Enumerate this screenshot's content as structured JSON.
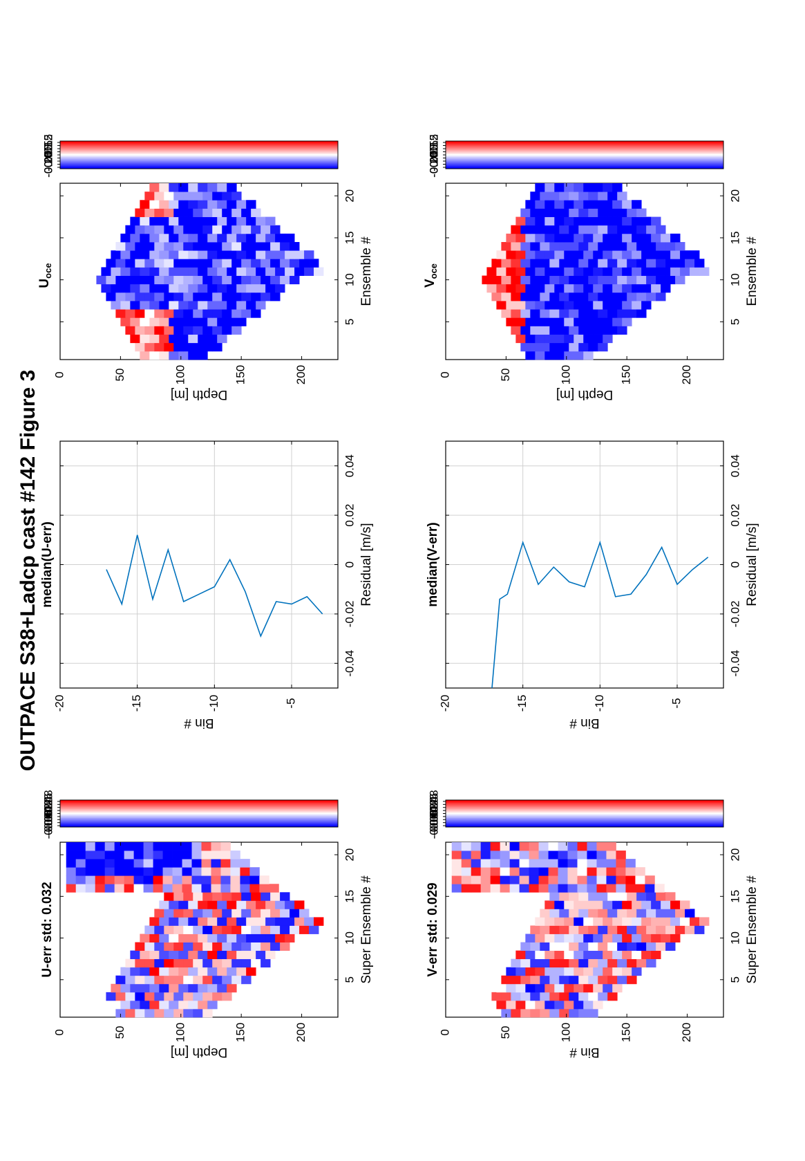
{
  "figure": {
    "suptitle": "OUTPACE S38+Ladcp cast #142  Figure 3",
    "panels": {
      "u_err": {
        "title": "U-err std: 0.032",
        "xlabel": "Super Ensemble #",
        "ylabel": "Depth [m]",
        "xticks": [
          "5",
          "10",
          "15",
          "20"
        ],
        "yticks": [
          "0",
          "50",
          "100",
          "150",
          "200"
        ]
      },
      "v_err": {
        "title": "V-err std: 0.029",
        "xlabel": "Super Ensemble #",
        "ylabel": "Bin #",
        "xticks": [
          "5",
          "10",
          "15",
          "20"
        ],
        "yticks": [
          "0",
          "50",
          "100",
          "150",
          "200"
        ]
      },
      "u_med": {
        "title": "median(U-err)",
        "xlabel": "Residual [m/s]",
        "ylabel": "Bin #",
        "xticks": [
          "-0.04",
          "-0.02",
          "0",
          "0.02",
          "0.04"
        ],
        "yticks": [
          "-5",
          "-10",
          "-15",
          "-20"
        ]
      },
      "v_med": {
        "title": "median(V-err)",
        "xlabel": "Residual [m/s]",
        "ylabel": "Bin #",
        "xticks": [
          "-0.04",
          "-0.02",
          "0",
          "0.02",
          "0.04"
        ],
        "yticks": [
          "-5",
          "-10",
          "-15",
          "-20"
        ]
      },
      "u_oce": {
        "title_main": "U",
        "title_sub": "oce",
        "xlabel": "Ensemble #",
        "ylabel": "Depth [m]",
        "xticks": [
          "5",
          "10",
          "15",
          "20"
        ],
        "yticks": [
          "0",
          "50",
          "100",
          "150",
          "200"
        ]
      },
      "v_oce": {
        "title_main": "V",
        "title_sub": "oce",
        "xlabel": "Ensemble #",
        "ylabel": "Depth [m]",
        "xticks": [
          "5",
          "10",
          "15",
          "20"
        ],
        "yticks": [
          "0",
          "50",
          "100",
          "150",
          "200"
        ]
      }
    },
    "colorbars": {
      "err": [
        "0.08",
        "0.06",
        "0.04",
        "0.02",
        "0",
        "-0.02",
        "-0.04",
        "-0.06",
        "-0.08"
      ],
      "oce": [
        "0.2",
        "0.15",
        "0.1",
        "0.05",
        "0",
        "-0.05",
        "-0.1",
        "-0.15",
        "-0.2"
      ]
    }
  },
  "chart_data": [
    {
      "id": "u_err",
      "type": "heatmap",
      "title": "U-err std: 0.032",
      "xlabel": "Super Ensemble #",
      "ylabel": "Depth [m]",
      "xlim": [
        0.5,
        21.5
      ],
      "ylim": [
        0,
        230
      ],
      "color_range": [
        -0.09,
        0.09
      ],
      "colormap": "blue-white-red",
      "note_shape": "valid cells form a V: deep near ensemble 11-12, shallow at both ends"
    },
    {
      "id": "v_err",
      "type": "heatmap",
      "title": "V-err std: 0.029",
      "xlabel": "Super Ensemble #",
      "ylabel": "Bin #",
      "xlim": [
        0.5,
        21.5
      ],
      "ylim": [
        0,
        230
      ],
      "color_range": [
        -0.09,
        0.09
      ],
      "colormap": "blue-white-red"
    },
    {
      "id": "u_med",
      "type": "line",
      "title": "median(U-err)",
      "xlabel": "Residual [m/s]",
      "ylabel": "Bin #",
      "xlim": [
        -0.05,
        0.05
      ],
      "ylim": [
        -20,
        -2
      ],
      "color": "#0072bd",
      "series": [
        {
          "x": [
            -0.02,
            -0.013,
            -0.016,
            -0.015,
            -0.029,
            -0.011,
            0.002,
            -0.009,
            -0.012,
            -0.015,
            0.006,
            -0.014,
            0.012,
            -0.016,
            -0.002
          ],
          "y": [
            -3,
            -4,
            -5,
            -6,
            -7,
            -8,
            -9,
            -10,
            -11,
            -12,
            -13,
            -14,
            -15,
            -16,
            -17
          ]
        }
      ]
    },
    {
      "id": "v_med",
      "type": "line",
      "title": "median(V-err)",
      "xlabel": "Residual [m/s]",
      "ylabel": "Bin #",
      "xlim": [
        -0.05,
        0.05
      ],
      "ylim": [
        -20,
        -2
      ],
      "color": "#0072bd",
      "series": [
        {
          "x": [
            0.003,
            -0.002,
            -0.008,
            0.007,
            -0.004,
            -0.012,
            -0.013,
            0.009,
            -0.009,
            -0.007,
            -0.001,
            -0.008,
            0.009,
            -0.012,
            -0.014,
            -0.05
          ],
          "y": [
            -3,
            -4,
            -5,
            -6,
            -7,
            -8,
            -9,
            -10,
            -11,
            -12,
            -13,
            -14,
            -15,
            -16,
            -16.5,
            -17
          ]
        }
      ]
    },
    {
      "id": "u_oce",
      "type": "heatmap",
      "title": "U oce",
      "xlabel": "Ensemble #",
      "ylabel": "Depth [m]",
      "xlim": [
        0.5,
        21.5
      ],
      "ylim": [
        0,
        230
      ],
      "color_range": [
        -0.22,
        0.22
      ],
      "colormap": "blue-white-red"
    },
    {
      "id": "v_oce",
      "type": "heatmap",
      "title": "V oce",
      "xlabel": "Ensemble #",
      "ylabel": "Depth [m]",
      "xlim": [
        0.5,
        21.5
      ],
      "ylim": [
        0,
        230
      ],
      "color_range": [
        -0.22,
        0.22
      ],
      "colormap": "blue-white-red"
    }
  ]
}
